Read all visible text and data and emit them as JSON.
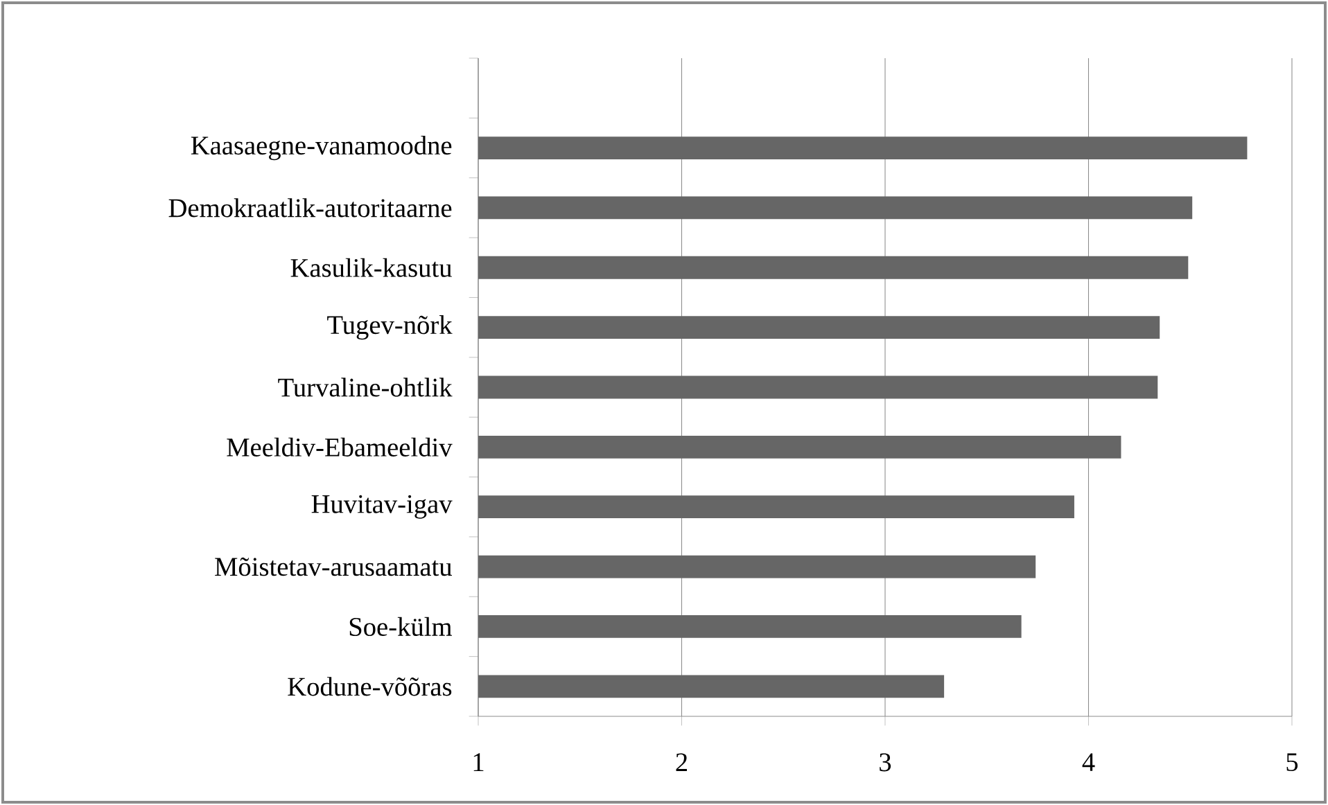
{
  "chart_data": {
    "type": "bar",
    "orientation": "horizontal",
    "categories": [
      null,
      "Kaasaegne-vanamoodne",
      "Demokraatlik-autoritaarne",
      "Kasulik-kasutu",
      "Tugev-nõrk",
      "Turvaline-ohtlik",
      "Meeldiv-Ebameeldiv",
      "Huvitav-igav",
      "Mõistetav-arusaamatu",
      "Soe-külm",
      "Kodune-võõras"
    ],
    "values": [
      null,
      4.78,
      4.51,
      4.49,
      4.35,
      4.34,
      4.16,
      3.93,
      3.74,
      3.67,
      3.29
    ],
    "color": "#666666",
    "xlim": [
      1,
      5
    ],
    "xticks": [
      1,
      2,
      3,
      4,
      5
    ],
    "grid": "x"
  }
}
